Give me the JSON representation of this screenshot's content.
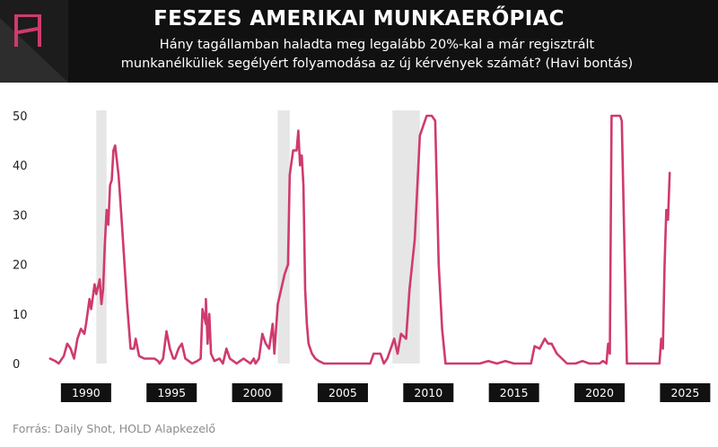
{
  "header": {
    "title": "FESZES AMERIKAI MUNKAERŐPIAC",
    "subtitle_line1": "Hány tagállamban haladta meg legalább 20%-kal a már regisztrált",
    "subtitle_line2": "munkanélküliek segélyért folyamodása az új kérvények számát? (Havi bontás)",
    "logo_icon": "hold-logo-icon"
  },
  "source": "Forrás: Daily Shot, HOLD Alapkezelő",
  "colors": {
    "line": "#cf3a6f",
    "recession": "#e6e6e6",
    "header_bg": "#111111",
    "tick_box": "#111111",
    "logo": "#cf3a6f"
  },
  "chart_data": {
    "type": "line",
    "title": "FESZES AMERIKAI MUNKAERŐPIAC",
    "xlabel": "",
    "ylabel": "",
    "ylim": [
      0,
      50
    ],
    "xlim": [
      1987.7,
      2026.5
    ],
    "y_ticks": [
      0,
      10,
      20,
      30,
      40,
      50
    ],
    "x_ticks": [
      1990,
      1995,
      2000,
      2005,
      2010,
      2015,
      2020,
      2025
    ],
    "grid": false,
    "legend": "none",
    "recession_bands": [
      [
        1990.6,
        1991.2
      ],
      [
        2001.2,
        2001.9
      ],
      [
        2007.9,
        2009.5
      ]
    ],
    "series": [
      {
        "x": [
          1987.9,
          1988.2,
          1988.4,
          1988.7,
          1988.9,
          1989.1,
          1989.3,
          1989.5,
          1989.7,
          1989.9,
          1990.0,
          1990.2,
          1990.3,
          1990.5,
          1990.6,
          1990.8,
          1990.9,
          1991.0,
          1991.1,
          1991.2,
          1991.3,
          1991.4,
          1991.5,
          1991.6,
          1991.7,
          1991.9,
          1992.1,
          1992.4,
          1992.6,
          1992.8,
          1992.9,
          1993.1,
          1993.4,
          1993.7,
          1994.0,
          1994.2,
          1994.3,
          1994.5,
          1994.7,
          1994.9,
          1995.1,
          1995.2,
          1995.4,
          1995.6,
          1995.8,
          1996.0,
          1996.2,
          1996.5,
          1996.7,
          1996.8,
          1997.0,
          1997.0,
          1997.1,
          1997.2,
          1997.3,
          1997.5,
          1997.8,
          1998.0,
          1998.2,
          1998.4,
          1998.6,
          1998.8,
          1999.0,
          1999.2,
          1999.4,
          1999.6,
          1999.8,
          1999.9,
          2000.1,
          2000.3,
          2000.5,
          2000.7,
          2000.9,
          2001.0,
          2001.2,
          2001.4,
          2001.6,
          2001.8,
          2001.9,
          2002.1,
          2002.3,
          2002.4,
          2002.5,
          2002.6,
          2002.7,
          2002.8,
          2002.9,
          2003.0,
          2003.2,
          2003.4,
          2003.6,
          2003.9,
          2004.2,
          2004.4,
          2004.6,
          2004.9,
          2005.2,
          2005.5,
          2005.8,
          2006.1,
          2006.6,
          2006.8,
          2007.2,
          2007.4,
          2007.6,
          2007.8,
          2008.0,
          2008.2,
          2008.4,
          2008.7,
          2008.9,
          2009.2,
          2009.5,
          2009.9,
          2010.1,
          2010.2,
          2010.4,
          2010.6,
          2010.8,
          2011.0,
          2011.5,
          2012.0,
          2012.5,
          2013.0,
          2013.5,
          2014.0,
          2014.5,
          2015.0,
          2015.5,
          2016.0,
          2016.2,
          2016.5,
          2016.8,
          2017.0,
          2017.2,
          2017.5,
          2017.8,
          2018.1,
          2018.6,
          2019.0,
          2019.4,
          2019.7,
          2020.0,
          2020.2,
          2020.4,
          2020.5,
          2020.6,
          2020.7,
          2020.9,
          2021.2,
          2021.3,
          2021.6,
          2021.9,
          2022.3,
          2022.8,
          2023.3,
          2023.5,
          2023.6,
          2023.7,
          2023.8,
          2023.9,
          2024.0,
          2024.1
        ],
        "y": [
          1,
          0.5,
          0,
          1.5,
          4,
          3,
          1,
          5,
          7,
          6,
          8,
          13,
          11,
          16,
          14,
          17,
          12,
          15,
          24,
          31,
          28,
          36,
          37,
          43,
          44,
          38,
          28,
          12,
          3,
          3,
          5,
          1.5,
          1,
          1,
          1,
          0.5,
          0,
          1,
          6.5,
          3,
          1,
          1,
          3,
          4,
          1,
          0.5,
          0,
          0.5,
          1,
          11,
          8,
          13,
          4,
          10,
          2,
          0.5,
          1,
          0,
          3,
          1,
          0.5,
          0,
          0.5,
          1,
          0.5,
          0,
          1,
          0,
          1,
          6,
          4,
          3,
          8,
          2,
          12,
          15,
          18,
          20,
          38,
          43,
          43,
          47,
          40,
          42,
          36,
          15,
          8,
          4,
          2,
          1,
          0.5,
          0,
          0,
          0,
          0,
          0,
          0,
          0,
          0,
          0,
          0,
          2,
          2,
          0,
          1,
          3,
          5,
          2,
          6,
          5,
          15,
          25,
          46,
          50,
          50,
          50,
          49,
          20,
          7,
          0,
          0,
          0,
          0,
          0,
          0.5,
          0,
          0.5,
          0,
          0,
          0,
          3.5,
          3,
          5,
          4,
          4,
          2,
          1,
          0,
          0,
          0.5,
          0,
          0,
          0,
          0.5,
          0,
          4,
          2,
          50,
          50,
          50,
          49,
          0,
          0,
          0,
          0,
          0,
          0,
          5,
          3,
          20,
          31,
          29,
          38.5
        ]
      }
    ]
  }
}
